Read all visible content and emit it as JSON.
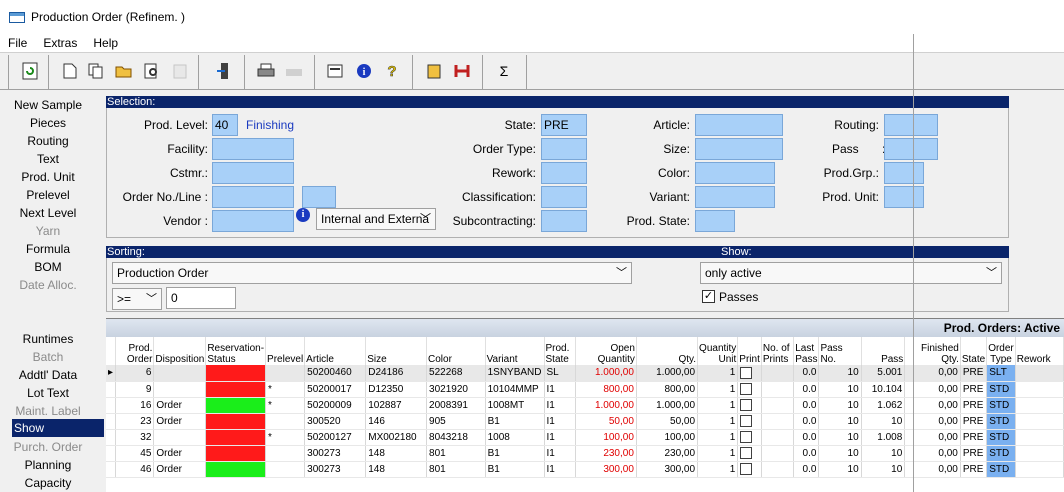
{
  "window": {
    "title": "Production Order (Refinem. )"
  },
  "menu": [
    "File",
    "Extras",
    "Help"
  ],
  "toolbar_icons": [
    "refresh-icon",
    "new-doc-icon",
    "copy-icon",
    "open-folder-icon",
    "preview-icon",
    "paste-icon",
    "exit-door-icon",
    "print-icon",
    "print-setup-icon",
    "properties-icon",
    "info-icon",
    "help-icon",
    "clipboard-icon",
    "tools-icon",
    "sigma-icon"
  ],
  "sidebar": {
    "top": [
      {
        "label": "New Sample",
        "enabled": true
      },
      {
        "label": "Pieces",
        "enabled": true
      },
      {
        "label": "Routing",
        "enabled": true
      },
      {
        "label": "Text",
        "enabled": true
      },
      {
        "label": "Prod. Unit",
        "enabled": true
      },
      {
        "label": "Prelevel",
        "enabled": true
      },
      {
        "label": "Next Level",
        "enabled": true
      },
      {
        "label": "Yarn",
        "enabled": false
      },
      {
        "label": "Formula",
        "enabled": true
      },
      {
        "label": "BOM",
        "enabled": true
      },
      {
        "label": "Date Alloc.",
        "enabled": false
      }
    ],
    "bottom": [
      {
        "label": "Runtimes",
        "enabled": true
      },
      {
        "label": "Batch",
        "enabled": false
      },
      {
        "label": "Addtl' Data",
        "enabled": true
      },
      {
        "label": "Lot Text",
        "enabled": true
      },
      {
        "label": "Maint. Label",
        "enabled": false
      },
      {
        "label": "Show",
        "enabled": true,
        "selected": true
      },
      {
        "label": "Purch. Order",
        "enabled": false
      },
      {
        "label": "Planning",
        "enabled": true
      },
      {
        "label": "Capacity",
        "enabled": true
      }
    ]
  },
  "selection": {
    "header": "Selection:",
    "prod_level_label": "Prod. Level:",
    "prod_level_value": "40",
    "prod_level_name": "Finishing",
    "facility_label": "Facility:",
    "cstmr_label": "Cstmr.:",
    "order_no_label": "Order No./Line :",
    "vendor_label": "Vendor   :",
    "vendor_type": "Internal and Externa",
    "state_label": "State:",
    "state_value": "PRE",
    "order_type_label": "Order Type:",
    "rework_label": "Rework:",
    "classification_label": "Classification:",
    "subcontracting_label": "Subcontracting:",
    "article_label": "Article:",
    "size_label": "Size:",
    "color_label": "Color:",
    "variant_label": "Variant:",
    "prod_state_label": "Prod. State:",
    "routing_label": "Routing:",
    "pass_label": "Pass       :",
    "prod_grp_label": "Prod.Grp.:",
    "prod_unit_label": "Prod. Unit:"
  },
  "sorting": {
    "header": "Sorting:",
    "sort_value": "Production Order",
    "operator": ">=",
    "from_value": "0"
  },
  "show": {
    "header": "Show:",
    "value": "only active",
    "passes_label": "Passes",
    "passes_checked": true
  },
  "grid": {
    "title": "Prod. Orders: Active",
    "columns": [
      "Prod. Order",
      "Disposition",
      "Reservation-Status",
      "Prelevel",
      "Article",
      "Size",
      "Color",
      "Variant",
      "Prod. State",
      "Open Quantity",
      "Qty.",
      "Quantity Unit",
      "Print",
      "No. of Prints",
      "Last Pass",
      "Pass No.",
      "Pass",
      "Finished Qty.",
      "State",
      "Order Type",
      "Rework"
    ],
    "rows": [
      {
        "order": "6",
        "disp": "",
        "res": "red",
        "pre": "",
        "article": "50200460",
        "size": "D24186",
        "color": "522268",
        "variant": "1SNYBAND",
        "pstate": "SL",
        "open": "1.000,00",
        "qty": "1.000,00",
        "unit": "1",
        "last": "0.0",
        "passno": "10",
        "pass": "5.001",
        "fin": "0,00",
        "state": "PRE",
        "otype": "SLT"
      },
      {
        "order": "9",
        "disp": "",
        "res": "red",
        "pre": "*",
        "article": "50200017",
        "size": "D12350",
        "color": "3021920",
        "variant": "10104MMP",
        "pstate": "I1",
        "open": "800,00",
        "qty": "800,00",
        "unit": "1",
        "last": "0.0",
        "passno": "10",
        "pass": "10.104",
        "fin": "0,00",
        "state": "PRE",
        "otype": "STD"
      },
      {
        "order": "16",
        "disp": "Order",
        "res": "green",
        "pre": "*",
        "article": "50200009",
        "size": "102887",
        "color": "2008391",
        "variant": "1008MT",
        "pstate": "I1",
        "open": "1.000,00",
        "qty": "1.000,00",
        "unit": "1",
        "last": "0.0",
        "passno": "10",
        "pass": "1.062",
        "fin": "0,00",
        "state": "PRE",
        "otype": "STD"
      },
      {
        "order": "23",
        "disp": "Order",
        "res": "red",
        "pre": "",
        "article": "300520",
        "size": "146",
        "color": "905",
        "variant": "B1",
        "pstate": "I1",
        "open": "50,00",
        "qty": "50,00",
        "unit": "1",
        "last": "0.0",
        "passno": "10",
        "pass": "10",
        "fin": "0,00",
        "state": "PRE",
        "otype": "STD"
      },
      {
        "order": "32",
        "disp": "",
        "res": "red",
        "pre": "*",
        "article": "50200127",
        "size": "MX002180",
        "color": "8043218",
        "variant": "1008",
        "pstate": "I1",
        "open": "100,00",
        "qty": "100,00",
        "unit": "1",
        "last": "0.0",
        "passno": "10",
        "pass": "1.008",
        "fin": "0,00",
        "state": "PRE",
        "otype": "STD"
      },
      {
        "order": "45",
        "disp": "Order",
        "res": "red",
        "pre": "",
        "article": "300273",
        "size": "148",
        "color": "801",
        "variant": "B1",
        "pstate": "I1",
        "open": "230,00",
        "qty": "230,00",
        "unit": "1",
        "last": "0.0",
        "passno": "10",
        "pass": "10",
        "fin": "0,00",
        "state": "PRE",
        "otype": "STD"
      },
      {
        "order": "46",
        "disp": "Order",
        "res": "green",
        "pre": "",
        "article": "300273",
        "size": "148",
        "color": "801",
        "variant": "B1",
        "pstate": "I1",
        "open": "300,00",
        "qty": "300,00",
        "unit": "1",
        "last": "0.0",
        "passno": "10",
        "pass": "10",
        "fin": "0,00",
        "state": "PRE",
        "otype": "STD"
      }
    ]
  }
}
